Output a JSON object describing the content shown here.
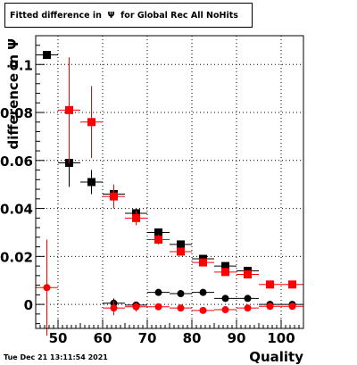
{
  "chart_data": {
    "type": "scatter",
    "title": "Fitted difference in  Ψ  for Global Rec All NoHits",
    "xlabel": "Quality",
    "ylabel": "difference in Ψ",
    "xlim": [
      45,
      105
    ],
    "ylim": [
      -0.01,
      0.112
    ],
    "x_ticks": [
      50,
      60,
      70,
      80,
      90,
      100
    ],
    "y_ticks": [
      0,
      0.02,
      0.04,
      0.06,
      0.08,
      0.1
    ],
    "y_tick_labels": [
      "0",
      "0.02",
      "0.04",
      "0.06",
      "0.08",
      "0.1"
    ],
    "grid": true,
    "series": [
      {
        "color": "#000000",
        "marker": "square",
        "points": [
          {
            "x": 47.5,
            "y": 0.104,
            "xerr": 2.5,
            "yerr": 0.0
          },
          {
            "x": 52.5,
            "y": 0.059,
            "xerr": 2.5,
            "yerr": 0.01
          },
          {
            "x": 57.5,
            "y": 0.051,
            "xerr": 2.5,
            "yerr": 0.005
          },
          {
            "x": 62.5,
            "y": 0.046,
            "xerr": 2.5,
            "yerr": 0.003
          },
          {
            "x": 67.5,
            "y": 0.038,
            "xerr": 2.5,
            "yerr": 0.002
          },
          {
            "x": 72.5,
            "y": 0.03,
            "xerr": 2.5,
            "yerr": 0.0015
          },
          {
            "x": 77.5,
            "y": 0.025,
            "xerr": 2.5,
            "yerr": 0.0012
          },
          {
            "x": 82.5,
            "y": 0.019,
            "xerr": 2.5,
            "yerr": 0.001
          },
          {
            "x": 87.5,
            "y": 0.016,
            "xerr": 2.5,
            "yerr": 0.001
          },
          {
            "x": 92.5,
            "y": 0.014,
            "xerr": 2.5,
            "yerr": 0.001
          }
        ]
      },
      {
        "color": "#ff0000",
        "marker": "square",
        "points": [
          {
            "x": 52.5,
            "y": 0.081,
            "xerr": 2.5,
            "yerr": 0.022
          },
          {
            "x": 57.5,
            "y": 0.076,
            "xerr": 2.5,
            "yerr": 0.015
          },
          {
            "x": 62.5,
            "y": 0.045,
            "xerr": 2.5,
            "yerr": 0.005
          },
          {
            "x": 67.5,
            "y": 0.036,
            "xerr": 2.5,
            "yerr": 0.003
          },
          {
            "x": 72.5,
            "y": 0.027,
            "xerr": 2.5,
            "yerr": 0.002
          },
          {
            "x": 77.5,
            "y": 0.022,
            "xerr": 2.5,
            "yerr": 0.0015
          },
          {
            "x": 82.5,
            "y": 0.0175,
            "xerr": 2.5,
            "yerr": 0.0012
          },
          {
            "x": 87.5,
            "y": 0.0135,
            "xerr": 2.5,
            "yerr": 0.001
          },
          {
            "x": 92.5,
            "y": 0.0125,
            "xerr": 2.5,
            "yerr": 0.001
          },
          {
            "x": 97.5,
            "y": 0.0083,
            "xerr": 2.5,
            "yerr": 0.001
          },
          {
            "x": 102.5,
            "y": 0.0083,
            "xerr": 2.5,
            "yerr": 0.001
          }
        ]
      },
      {
        "color": "#000000",
        "marker": "circle",
        "points": [
          {
            "x": 62.5,
            "y": 0.0005,
            "xerr": 2.5,
            "yerr": 0.002
          },
          {
            "x": 67.5,
            "y": -0.0003,
            "xerr": 2.5,
            "yerr": 0.0015
          },
          {
            "x": 72.5,
            "y": 0.005,
            "xerr": 2.5,
            "yerr": 0.001
          },
          {
            "x": 77.5,
            "y": 0.0045,
            "xerr": 2.5,
            "yerr": 0.001
          },
          {
            "x": 82.5,
            "y": 0.005,
            "xerr": 2.5,
            "yerr": 0.001
          },
          {
            "x": 87.5,
            "y": 0.0025,
            "xerr": 2.5,
            "yerr": 0.001
          },
          {
            "x": 92.5,
            "y": 0.0025,
            "xerr": 2.5,
            "yerr": 0.001
          },
          {
            "x": 97.5,
            "y": 0.0,
            "xerr": 2.5,
            "yerr": 0.001
          },
          {
            "x": 102.5,
            "y": 0.0,
            "xerr": 2.5,
            "yerr": 0.001
          }
        ]
      },
      {
        "color": "#ff0000",
        "marker": "circle",
        "points": [
          {
            "x": 47.5,
            "y": 0.007,
            "xerr": 2.5,
            "yerr": 0.02
          },
          {
            "x": 62.5,
            "y": -0.0015,
            "xerr": 2.5,
            "yerr": 0.003
          },
          {
            "x": 67.5,
            "y": -0.001,
            "xerr": 2.5,
            "yerr": 0.002
          },
          {
            "x": 72.5,
            "y": -0.001,
            "xerr": 2.5,
            "yerr": 0.001
          },
          {
            "x": 77.5,
            "y": -0.0015,
            "xerr": 2.5,
            "yerr": 0.001
          },
          {
            "x": 82.5,
            "y": -0.0025,
            "xerr": 2.5,
            "yerr": 0.001
          },
          {
            "x": 87.5,
            "y": -0.0022,
            "xerr": 2.5,
            "yerr": 0.001
          },
          {
            "x": 92.5,
            "y": -0.0015,
            "xerr": 2.5,
            "yerr": 0.001
          },
          {
            "x": 97.5,
            "y": -0.0008,
            "xerr": 2.5,
            "yerr": 0.001
          },
          {
            "x": 102.5,
            "y": -0.0008,
            "xerr": 2.5,
            "yerr": 0.001
          }
        ]
      }
    ]
  },
  "timestamp": "Tue Dec 21 13:11:54 2021"
}
